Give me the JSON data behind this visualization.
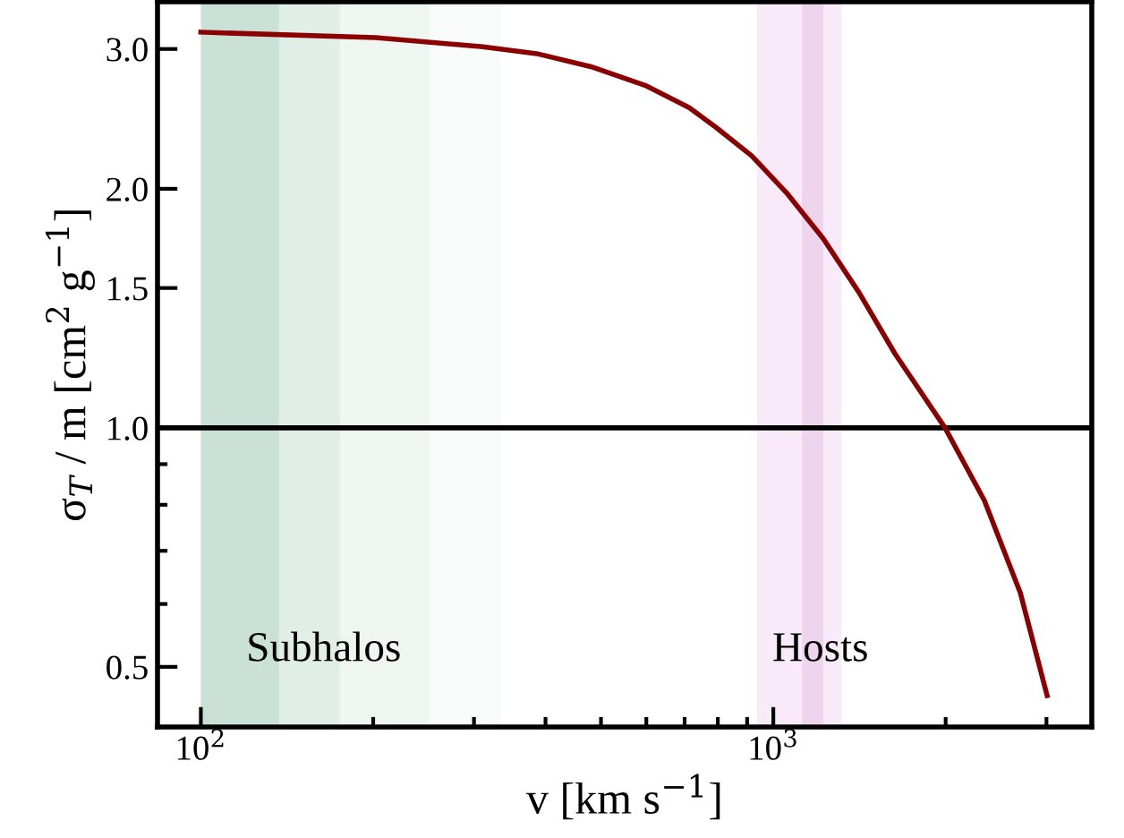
{
  "chart_data": {
    "type": "line",
    "xlabel": "v [km s$^{−1}$]",
    "ylabel": "σ$_{T}$ / m [cm$^{2}$ g$^{−1}$]",
    "log": "xy",
    "x": [
      100,
      202,
      311,
      386,
      480,
      597,
      713,
      794,
      917,
      1059,
      1223,
      1412,
      1631,
      1995,
      2337,
      2700,
      3008
    ],
    "series": [
      {
        "color": "#8b0000",
        "values": [
          3.15,
          3.1,
          3.02,
          2.96,
          2.85,
          2.7,
          2.53,
          2.39,
          2.2,
          1.97,
          1.73,
          1.48,
          1.24,
          1.0,
          0.81,
          0.62,
          0.46
        ]
      }
    ],
    "xlim": [
      84,
      3600
    ],
    "ylim": [
      0.42,
      3.44
    ],
    "xticks": [
      {
        "value": 100,
        "label": "10$^{2}$"
      },
      {
        "value": 200,
        "label": null
      },
      {
        "value": 300,
        "label": null
      },
      {
        "value": 400,
        "label": null
      },
      {
        "value": 500,
        "label": null
      },
      {
        "value": 600,
        "label": null
      },
      {
        "value": 700,
        "label": null
      },
      {
        "value": 800,
        "label": null
      },
      {
        "value": 900,
        "label": null
      },
      {
        "value": 1000,
        "label": "10$^{3}$"
      },
      {
        "value": 2000,
        "label": null
      },
      {
        "value": 3000,
        "label": null
      }
    ],
    "yticks": [
      0.5,
      {
        "value": 0.6,
        "label": null
      },
      {
        "value": 0.7,
        "label": null
      },
      {
        "value": 0.8,
        "label": null
      },
      {
        "value": 0.9,
        "label": null
      },
      {
        "value": 1,
        "label": "1.0"
      },
      1.5,
      {
        "value": 2,
        "label": "2.0"
      },
      {
        "value": 3,
        "label": "3.0"
      }
    ],
    "ref_lines": [
      {
        "axis": "y",
        "value": 1,
        "color": "#000000"
      }
    ],
    "bands": [
      {
        "axis": "x",
        "from": 100,
        "to": 137,
        "color": "#c9e1d6"
      },
      {
        "axis": "x",
        "from": 137,
        "to": 175,
        "color": "#e1eee8"
      },
      {
        "axis": "x",
        "from": 175,
        "to": 251,
        "color": "#eff6f2"
      },
      {
        "axis": "x",
        "from": 251,
        "to": 335,
        "color": "#f8fbf9"
      },
      {
        "axis": "x",
        "from": 937,
        "to": 1315,
        "color": "#f8eaf8"
      },
      {
        "axis": "x",
        "from": 1122,
        "to": 1223,
        "color": "#efd4ee"
      }
    ],
    "annotations": [
      "Subhalos",
      "Hosts"
    ],
    "grid": false,
    "marker": "none",
    "line_style": "solid"
  }
}
